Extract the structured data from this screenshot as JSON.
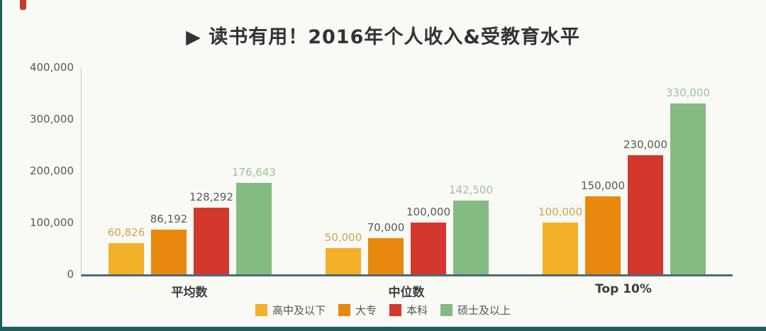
{
  "page": {
    "title": "▶ 读书有用！2016年个人收入&受教育水平"
  },
  "colors": {
    "axis_line": "#4e6a77",
    "frame_accent": "#1d5f5e",
    "tick_text": "#595959",
    "corner_mark": "#c63c2a"
  },
  "chart_data": {
    "type": "bar",
    "title": "读书有用！2016年个人收入&受教育水平",
    "subtitle": "",
    "categories": [
      "平均数",
      "中位数",
      "Top 10%"
    ],
    "series": [
      {
        "name": "高中及以下",
        "color": "#F2B129",
        "label_color": "#cba84e",
        "values": [
          60826,
          50000,
          100000
        ],
        "labels": [
          "60,826",
          "50,000",
          "100,000"
        ]
      },
      {
        "name": "大专",
        "color": "#E8880F",
        "label_color": "#595959",
        "values": [
          86192,
          70000,
          150000
        ],
        "labels": [
          "86,192",
          "70,000",
          "150,000"
        ]
      },
      {
        "name": "本科",
        "color": "#D2382C",
        "label_color": "#595959",
        "values": [
          128292,
          100000,
          230000
        ],
        "labels": [
          "128,292",
          "100,000",
          "230,000"
        ]
      },
      {
        "name": "硕士及以上",
        "color": "#83BB80",
        "label_color": "#9fc39a",
        "values": [
          176643,
          142500,
          330000
        ],
        "labels": [
          "176,643",
          "142,500",
          "330,000"
        ]
      }
    ],
    "ylim": [
      0,
      400000
    ],
    "yticks": [
      "400,000",
      "300,000",
      "200,000",
      "100,000",
      "0"
    ],
    "xlabel": "",
    "ylabel": "",
    "grid": false,
    "legend_position": "bottom"
  }
}
